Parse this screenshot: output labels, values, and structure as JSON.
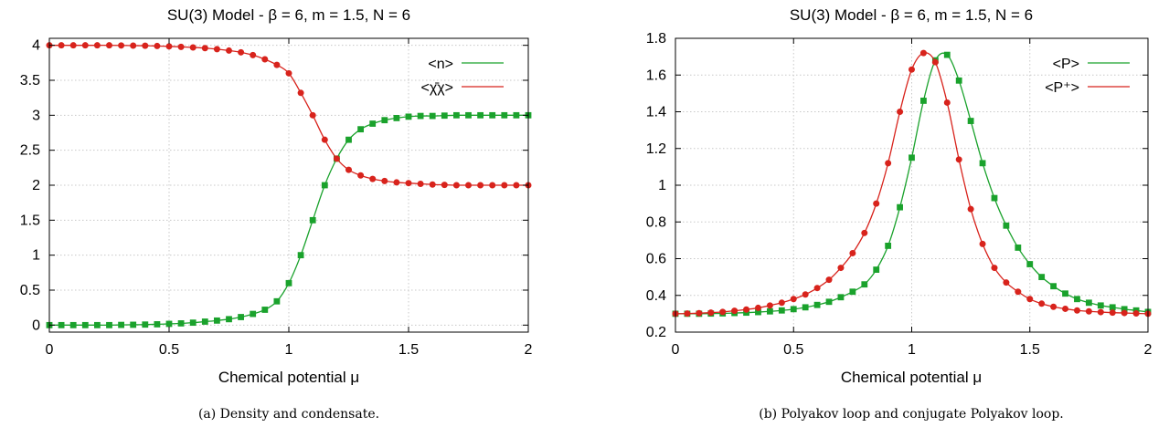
{
  "colors": {
    "green": "#1aa22c",
    "red": "#d8231c"
  },
  "chart_data": [
    {
      "type": "line",
      "title": "SU(3) Model - β = 6, m = 1.5, N = 6",
      "xlabel": "Chemical potential μ",
      "ylabel": "",
      "xlim": [
        0,
        2
      ],
      "ylim": [
        -0.1,
        4.1
      ],
      "xticks": [
        0,
        0.5,
        1,
        1.5,
        2
      ],
      "xtick_labels": [
        "0",
        "0.5",
        "1",
        "1.5",
        "2"
      ],
      "yticks": [
        0,
        0.5,
        1,
        1.5,
        2,
        2.5,
        3,
        3.5,
        4
      ],
      "ytick_labels": [
        "0",
        "0.5",
        "1",
        "1.5",
        "2",
        "2.5",
        "3",
        "3.5",
        "4"
      ],
      "grid": true,
      "legend": "top-right",
      "caption": "(a) Density and condensate.",
      "series": [
        {
          "name": "<n>",
          "color": "green",
          "marker": "square",
          "x": [
            0,
            0.05,
            0.1,
            0.15,
            0.2,
            0.25,
            0.3,
            0.35,
            0.4,
            0.45,
            0.5,
            0.55,
            0.6,
            0.65,
            0.7,
            0.75,
            0.8,
            0.85,
            0.9,
            0.95,
            1.0,
            1.05,
            1.1,
            1.15,
            1.2,
            1.25,
            1.3,
            1.35,
            1.4,
            1.45,
            1.5,
            1.55,
            1.6,
            1.65,
            1.7,
            1.75,
            1.8,
            1.85,
            1.9,
            1.95,
            2.0
          ],
          "y": [
            0,
            0,
            0,
            0,
            0,
            0,
            0.003,
            0.005,
            0.008,
            0.012,
            0.018,
            0.025,
            0.035,
            0.05,
            0.065,
            0.085,
            0.115,
            0.16,
            0.22,
            0.34,
            0.6,
            1.0,
            1.5,
            2.0,
            2.38,
            2.65,
            2.8,
            2.88,
            2.93,
            2.96,
            2.98,
            2.99,
            2.99,
            2.995,
            3.0,
            3.0,
            3.0,
            3.0,
            3.0,
            3.0,
            3.0
          ]
        },
        {
          "name": "<χ̄χ>",
          "color": "red",
          "marker": "circle",
          "x": [
            0,
            0.05,
            0.1,
            0.15,
            0.2,
            0.25,
            0.3,
            0.35,
            0.4,
            0.45,
            0.5,
            0.55,
            0.6,
            0.65,
            0.7,
            0.75,
            0.8,
            0.85,
            0.9,
            0.95,
            1.0,
            1.05,
            1.1,
            1.15,
            1.2,
            1.25,
            1.3,
            1.35,
            1.4,
            1.45,
            1.5,
            1.55,
            1.6,
            1.65,
            1.7,
            1.75,
            1.8,
            1.85,
            1.9,
            1.95,
            2.0
          ],
          "y": [
            4.0,
            4.0,
            4.0,
            4.0,
            4.0,
            4.0,
            3.998,
            3.996,
            3.994,
            3.99,
            3.985,
            3.978,
            3.97,
            3.96,
            3.945,
            3.925,
            3.9,
            3.86,
            3.8,
            3.72,
            3.6,
            3.32,
            3.0,
            2.65,
            2.38,
            2.22,
            2.14,
            2.09,
            2.06,
            2.04,
            2.03,
            2.02,
            2.01,
            2.005,
            2.0,
            2.0,
            2.0,
            2.0,
            2.0,
            2.0,
            2.0
          ]
        }
      ]
    },
    {
      "type": "line",
      "title": "SU(3) Model - β = 6, m = 1.5, N = 6",
      "xlabel": "Chemical potential μ",
      "ylabel": "",
      "xlim": [
        0,
        2
      ],
      "ylim": [
        0.2,
        1.8
      ],
      "xticks": [
        0,
        0.5,
        1,
        1.5,
        2
      ],
      "xtick_labels": [
        "0",
        "0.5",
        "1",
        "1.5",
        "2"
      ],
      "yticks": [
        0.2,
        0.4,
        0.6,
        0.8,
        1,
        1.2,
        1.4,
        1.6,
        1.8
      ],
      "ytick_labels": [
        "0.2",
        "0.4",
        "0.6",
        "0.8",
        "1",
        "1.2",
        "1.4",
        "1.6",
        "1.8"
      ],
      "grid": true,
      "legend": "top-right",
      "caption": "(b) Polyakov loop and conjugate Polyakov loop.",
      "series": [
        {
          "name": "<P>",
          "color": "green",
          "marker": "square",
          "x": [
            0,
            0.05,
            0.1,
            0.15,
            0.2,
            0.25,
            0.3,
            0.35,
            0.4,
            0.45,
            0.5,
            0.55,
            0.6,
            0.65,
            0.7,
            0.75,
            0.8,
            0.85,
            0.9,
            0.95,
            1.0,
            1.05,
            1.1,
            1.15,
            1.2,
            1.25,
            1.3,
            1.35,
            1.4,
            1.45,
            1.5,
            1.55,
            1.6,
            1.65,
            1.7,
            1.75,
            1.8,
            1.85,
            1.9,
            1.95,
            2.0
          ],
          "y": [
            0.3,
            0.3,
            0.3,
            0.301,
            0.302,
            0.304,
            0.306,
            0.309,
            0.313,
            0.318,
            0.325,
            0.335,
            0.348,
            0.365,
            0.39,
            0.42,
            0.46,
            0.54,
            0.67,
            0.88,
            1.15,
            1.46,
            1.68,
            1.71,
            1.57,
            1.35,
            1.12,
            0.93,
            0.78,
            0.66,
            0.57,
            0.5,
            0.45,
            0.41,
            0.38,
            0.36,
            0.345,
            0.335,
            0.325,
            0.318,
            0.31
          ]
        },
        {
          "name": "<P⁺>",
          "color": "red",
          "marker": "circle",
          "x": [
            0,
            0.05,
            0.1,
            0.15,
            0.2,
            0.25,
            0.3,
            0.35,
            0.4,
            0.45,
            0.5,
            0.55,
            0.6,
            0.65,
            0.7,
            0.75,
            0.8,
            0.85,
            0.9,
            0.95,
            1.0,
            1.05,
            1.1,
            1.15,
            1.2,
            1.25,
            1.3,
            1.35,
            1.4,
            1.45,
            1.5,
            1.55,
            1.6,
            1.65,
            1.7,
            1.75,
            1.8,
            1.85,
            1.9,
            1.95,
            2.0
          ],
          "y": [
            0.3,
            0.301,
            0.303,
            0.306,
            0.31,
            0.316,
            0.323,
            0.332,
            0.345,
            0.36,
            0.38,
            0.405,
            0.44,
            0.485,
            0.55,
            0.63,
            0.74,
            0.9,
            1.12,
            1.4,
            1.63,
            1.72,
            1.67,
            1.45,
            1.14,
            0.87,
            0.68,
            0.55,
            0.47,
            0.42,
            0.38,
            0.355,
            0.338,
            0.327,
            0.318,
            0.313,
            0.309,
            0.306,
            0.304,
            0.302,
            0.3
          ]
        }
      ]
    }
  ]
}
